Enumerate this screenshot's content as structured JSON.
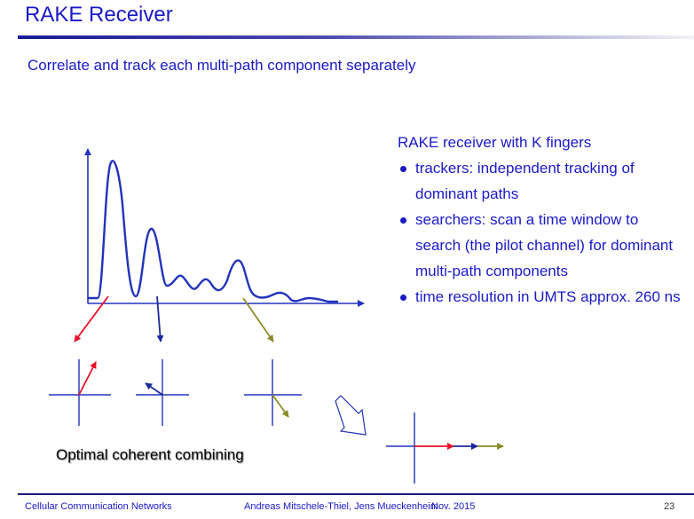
{
  "slide": {
    "title": "RAKE Receiver",
    "subtitle": "Correlate and track each multi-path component separately"
  },
  "info": {
    "heading": "RAKE receiver with K fingers",
    "bullets": [
      "trackers: independent tracking of dominant paths",
      "searchers: scan a time window to search (the pilot channel) for dominant multi-path components",
      "time resolution in UMTS approx. 260 ns"
    ]
  },
  "diagram": {
    "combining_label": "Optimal coherent combining",
    "colors": {
      "curve": "#2233bb",
      "axes": "#2233bb",
      "path1": "#e8102a",
      "path2": "#1a2a9a",
      "path3": "#8c8c2a",
      "arrow_outline": "#2233bb"
    }
  },
  "footer": {
    "course": "Cellular Communication Networks",
    "authors": "Andreas Mitschele-Thiel, Jens Mueckenheim",
    "date": "Nov. 2015",
    "page": "23"
  }
}
